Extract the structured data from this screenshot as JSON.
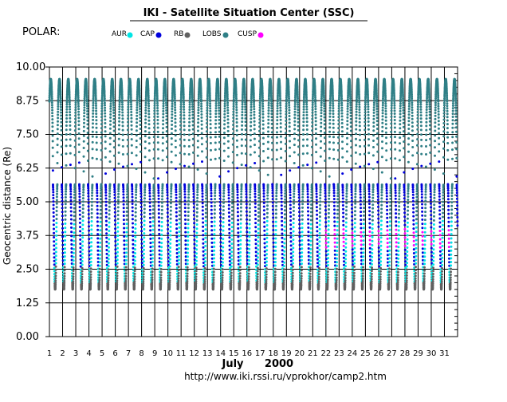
{
  "chart_data": {
    "type": "scatter",
    "title": "IKI - Satellite Situation Center (SSC)",
    "satellite": "POLAR:",
    "ylabel": "Geocentric distance (Re)",
    "xlabel_month": "July",
    "xlabel_year": "2000",
    "url": "http://www.iki.rssi.ru/vprokhor/camp2.htm",
    "ylim": [
      0,
      10
    ],
    "xlim": [
      1,
      32
    ],
    "y_ticks": [
      "0.00",
      "1.25",
      "2.50",
      "3.75",
      "5.00",
      "6.25",
      "7.50",
      "8.75",
      "10.00"
    ],
    "x_ticks": [
      "1",
      "2",
      "3",
      "4",
      "5",
      "6",
      "7",
      "8",
      "9",
      "10",
      "11",
      "12",
      "13",
      "14",
      "15",
      "16",
      "17",
      "18",
      "19",
      "20",
      "21",
      "22",
      "23",
      "24",
      "25",
      "26",
      "27",
      "28",
      "29",
      "30",
      "31"
    ],
    "grid": true,
    "legend": [
      {
        "name": "AUR",
        "color": "#00e5e5"
      },
      {
        "name": "CAP",
        "color": "#0000dd"
      },
      {
        "name": "RB",
        "color": "#606060"
      },
      {
        "name": "LOBS",
        "color": "#2f7f86"
      },
      {
        "name": "CUSP",
        "color": "#ff00ff"
      }
    ],
    "orbit": {
      "apogee_re": 9.55,
      "perigee_re": 1.75,
      "orbits_per_day": 1.5,
      "first_apogee_day": 1.1
    }
  }
}
